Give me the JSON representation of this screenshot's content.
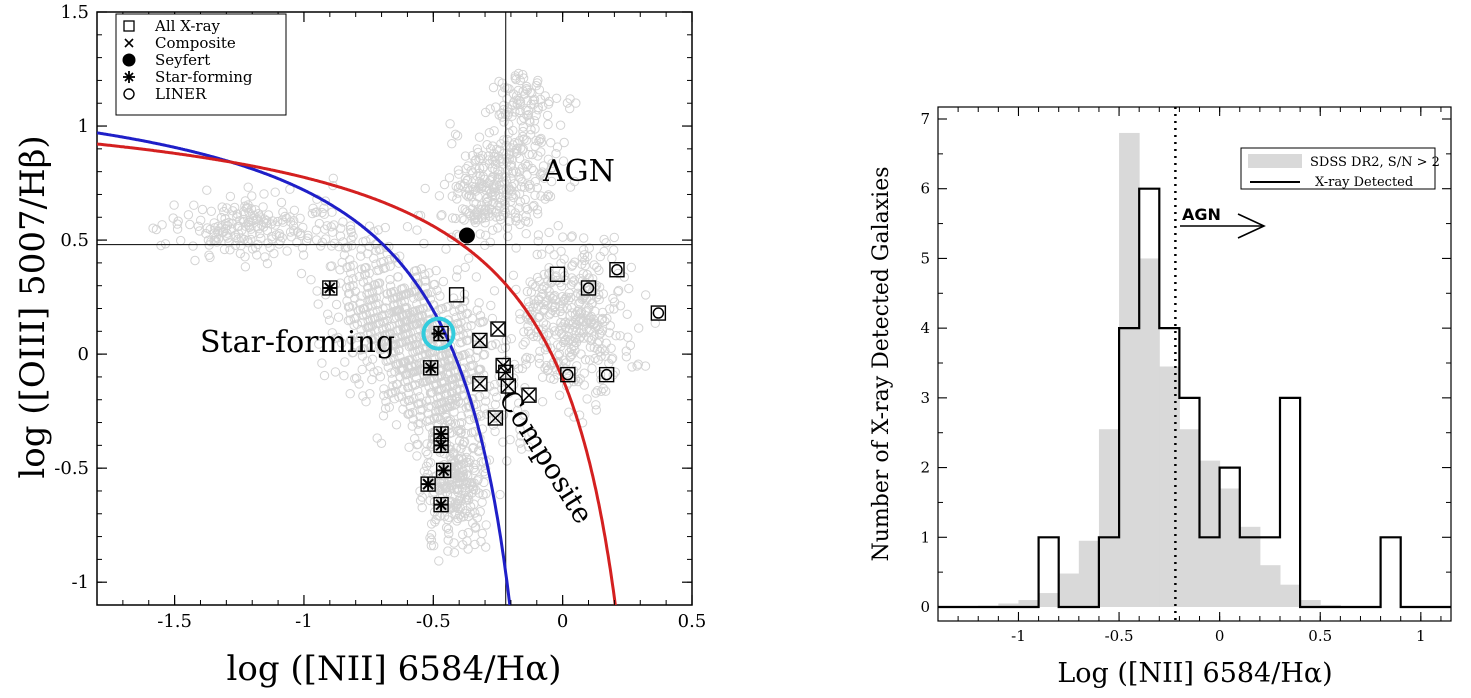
{
  "left_panel": {
    "xlabel": "log ([NII] 6584/Hα)",
    "ylabel": "log ([OIII] 5007/Hβ)",
    "xticks": [
      "-1.5",
      "-1",
      "-0.5",
      "0",
      "0.5"
    ],
    "yticks": [
      "1.5",
      "1",
      "0.5",
      "0",
      "-0.5",
      "-1"
    ],
    "region_labels": {
      "agn": "AGN",
      "star_forming": "Star-forming",
      "composite": "Composite"
    },
    "legend": [
      {
        "marker": "open-square",
        "label": "All X-ray"
      },
      {
        "marker": "cross",
        "label": "Composite"
      },
      {
        "marker": "filled-circle",
        "label": "Seyfert"
      },
      {
        "marker": "asterisk",
        "label": "Star-forming"
      },
      {
        "marker": "open-circle",
        "label": "LINER"
      }
    ],
    "colors": {
      "kauffmann": "#1f1fc8",
      "kewley": "#d42020",
      "background": "#d3d3d3",
      "highlight": "#33ccdd"
    }
  },
  "right_panel": {
    "xlabel": "Log ([NII] 6584/Hα)",
    "ylabel": "Number of X-ray Detected Galaxies",
    "xticks": [
      "-1",
      "-0.5",
      "0",
      "0.5",
      "1"
    ],
    "yticks": [
      "0",
      "1",
      "2",
      "3",
      "4",
      "5",
      "6",
      "7"
    ],
    "legend": [
      {
        "style": "gray-fill",
        "label": "SDSS DR2, S/N > 2"
      },
      {
        "style": "black-line",
        "label": "X-ray Detected"
      }
    ],
    "annotation": "AGN",
    "colors": {
      "sdss": "#d9d9d9",
      "xray": "#000000"
    }
  },
  "chart_data": [
    {
      "type": "scatter",
      "xlabel": "log ([NII] 6584/Hα)",
      "ylabel": "log ([OIII] 5007/Hβ)",
      "xlim": [
        -1.8,
        0.5
      ],
      "ylim": [
        -1.1,
        1.5
      ],
      "reference_lines": {
        "x": -0.22,
        "y": 0.48
      },
      "curves": [
        {
          "kind": "Kauffmann",
          "formula": "0.61/(x-0.05)+1.3",
          "color": "#1f1fc8"
        },
        {
          "kind": "Kewley",
          "formula": "0.61/(x-0.47)+1.19",
          "color": "#d42020"
        }
      ],
      "series": [
        {
          "name": "All X-ray",
          "marker": "open-square",
          "points": [
            [
              -0.47,
              0.09
            ],
            [
              -0.41,
              0.26
            ],
            [
              -0.02,
              0.35
            ],
            [
              0.1,
              0.29
            ],
            [
              0.21,
              0.37
            ],
            [
              0.37,
              0.18
            ],
            [
              0.02,
              -0.09
            ],
            [
              0.17,
              -0.09
            ],
            [
              -0.22,
              -0.08
            ],
            [
              -0.21,
              -0.14
            ],
            [
              -0.32,
              -0.13
            ],
            [
              -0.13,
              -0.18
            ],
            [
              -0.26,
              -0.28
            ],
            [
              -0.23,
              -0.05
            ],
            [
              -0.32,
              0.06
            ],
            [
              -0.25,
              0.11
            ],
            [
              -0.9,
              0.29
            ],
            [
              -0.51,
              -0.06
            ],
            [
              -0.47,
              -0.66
            ],
            [
              -0.47,
              -0.35
            ],
            [
              -0.47,
              -0.4
            ],
            [
              -0.46,
              -0.51
            ],
            [
              -0.52,
              -0.57
            ]
          ]
        },
        {
          "name": "Composite",
          "marker": "cross",
          "points": [
            [
              -0.32,
              0.06
            ],
            [
              -0.25,
              0.11
            ],
            [
              -0.23,
              -0.05
            ],
            [
              -0.22,
              -0.08
            ],
            [
              -0.21,
              -0.14
            ],
            [
              -0.32,
              -0.13
            ],
            [
              -0.13,
              -0.18
            ],
            [
              -0.26,
              -0.28
            ]
          ]
        },
        {
          "name": "Seyfert",
          "marker": "filled-circle",
          "points": [
            [
              -0.37,
              0.52
            ]
          ]
        },
        {
          "name": "Star-forming",
          "marker": "asterisk",
          "points": [
            [
              -0.9,
              0.29
            ],
            [
              -0.48,
              0.09
            ],
            [
              -0.51,
              -0.06
            ],
            [
              -0.47,
              -0.35
            ],
            [
              -0.47,
              -0.4
            ],
            [
              -0.46,
              -0.51
            ],
            [
              -0.52,
              -0.57
            ],
            [
              -0.47,
              -0.66
            ]
          ]
        },
        {
          "name": "LINER",
          "marker": "open-circle",
          "points": [
            [
              0.1,
              0.29
            ],
            [
              0.21,
              0.37
            ],
            [
              0.37,
              0.18
            ],
            [
              0.02,
              -0.09
            ],
            [
              0.17,
              -0.09
            ]
          ]
        }
      ],
      "highlight": {
        "x": -0.48,
        "y": 0.09,
        "color": "#33ccdd"
      }
    },
    {
      "type": "bar",
      "xlabel": "Log ([NII] 6584/Hα)",
      "ylabel": "Number of X-ray Detected Galaxies",
      "xlim": [
        -1.4,
        1.15
      ],
      "ylim": [
        0,
        7
      ],
      "bin_edges": [
        -1.4,
        -1.3,
        -1.2,
        -1.1,
        -1.0,
        -0.9,
        -0.8,
        -0.7,
        -0.6,
        -0.5,
        -0.4,
        -0.3,
        -0.2,
        -0.1,
        0.0,
        0.1,
        0.2,
        0.3,
        0.4,
        0.5,
        0.6,
        0.7,
        0.8,
        0.9,
        1.0,
        1.1
      ],
      "series": [
        {
          "name": "SDSS DR2, S/N > 2",
          "style": "filled",
          "values": [
            0,
            0,
            0.02,
            0.05,
            0.1,
            0.2,
            0.48,
            0.95,
            2.55,
            6.8,
            5.0,
            3.45,
            2.55,
            2.1,
            1.7,
            1.15,
            0.6,
            0.32,
            0.1,
            0.03,
            0,
            0,
            0,
            0,
            0
          ]
        },
        {
          "name": "X-ray Detected",
          "style": "step",
          "values": [
            0,
            0,
            0,
            0,
            0,
            1,
            0,
            0,
            1,
            4,
            6,
            4,
            3,
            1,
            2,
            1,
            1,
            3,
            0,
            0,
            0,
            0,
            1,
            0,
            0
          ]
        }
      ],
      "reference_line": {
        "x": -0.22,
        "style": "dotted"
      },
      "legend_position": "top-right"
    }
  ]
}
